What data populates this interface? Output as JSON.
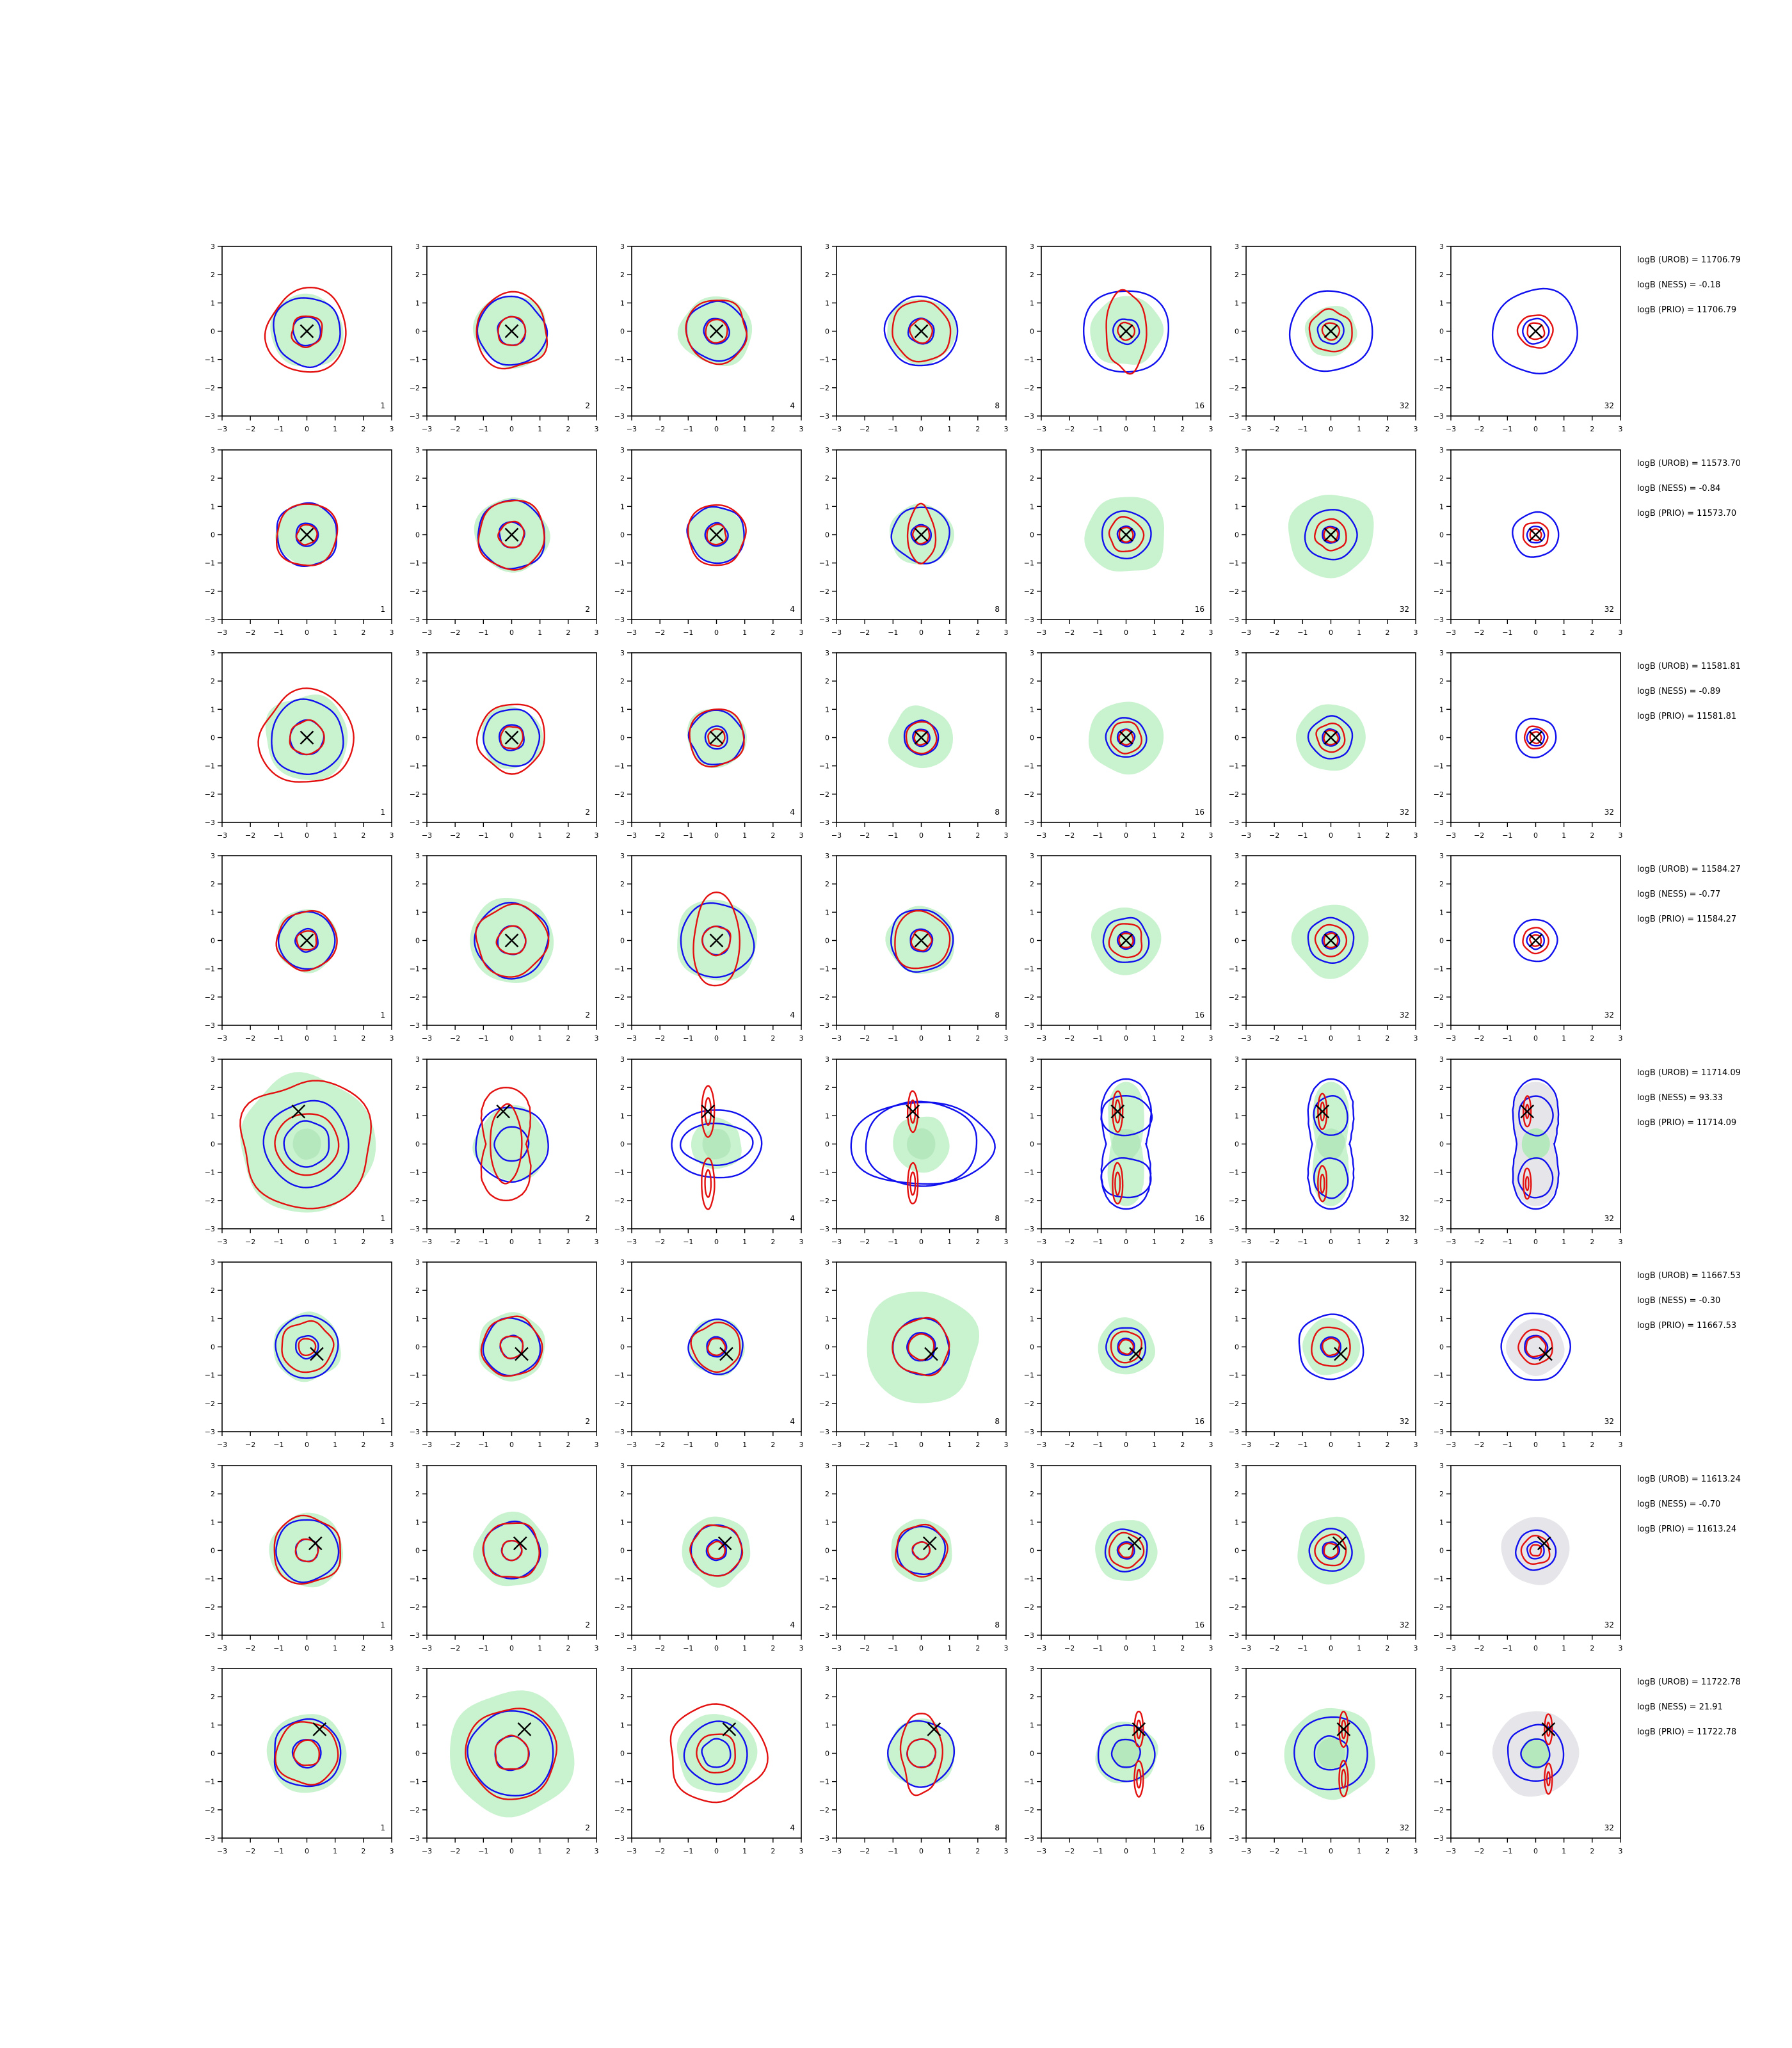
{
  "chart_data": {
    "type": "contour-grid",
    "xlim": [
      -3,
      3
    ],
    "ylim": [
      -3,
      3
    ],
    "ticks": [
      -3,
      -2,
      -1,
      0,
      1,
      2,
      3
    ],
    "grid": false,
    "colors": {
      "fill": "#c9f2cf",
      "fill_last": "#e6e6ea",
      "blue": "#1010ee",
      "red": "#e31010",
      "marker": "#000000"
    },
    "column_labels": [
      "1",
      "2",
      "4",
      "8",
      "16",
      "32",
      "32"
    ],
    "stat_labels": [
      "logB (UROB)",
      "logB (NESS)",
      "logB (PRIO)"
    ],
    "rows": [
      {
        "marker": [
          0.0,
          0.0
        ],
        "stats": [
          "11706.79",
          "-0.18",
          "11706.79"
        ],
        "panels": [
          {
            "fill": 1.3,
            "blue": [
              0.5,
              1.2
            ],
            "red": [
              0.55,
              1.45
            ]
          },
          {
            "fill": 1.3,
            "blue": [
              0.5,
              1.2
            ],
            "red": [
              0.5,
              1.3
            ]
          },
          {
            "fill": 1.25,
            "blue": [
              0.45,
              1.05
            ],
            "red": [
              0.4,
              1.1
            ]
          },
          {
            "fill": 1.2,
            "blue": [
              0.45,
              1.25
            ],
            "red": [
              0.4,
              1.05
            ]
          },
          {
            "fill": 1.25,
            "blue": [
              0.45,
              1.5
            ],
            "red": [
              0.3,
              1.3
            ],
            "red_shape": "elongated"
          },
          {
            "fill": 0.9,
            "blue": [
              0.45,
              1.45
            ],
            "red": [
              0.3,
              0.75
            ]
          },
          {
            "fill": 0,
            "blue": [
              0.45,
              1.5
            ],
            "red": [
              0.3,
              0.6
            ]
          }
        ]
      },
      {
        "marker": [
          0.0,
          0.0
        ],
        "stats": [
          "11573.70",
          "-0.84",
          "11573.70"
        ],
        "panels": [
          {
            "fill": 1.1,
            "blue": [
              0.4,
              1.1
            ],
            "red": [
              0.35,
              1.1
            ]
          },
          {
            "fill": 1.3,
            "blue": [
              0.45,
              1.2
            ],
            "red": [
              0.45,
              1.2
            ]
          },
          {
            "fill": 1.0,
            "blue": [
              0.4,
              1.0
            ],
            "red": [
              0.35,
              1.05
            ]
          },
          {
            "fill": 1.1,
            "blue": [
              0.35,
              1.0
            ],
            "red": [
              0.3,
              0.9
            ],
            "red_shape": "elongated"
          },
          {
            "fill": 1.4,
            "blue": [
              0.3,
              0.85
            ],
            "red": [
              0.25,
              0.6
            ]
          },
          {
            "fill": 1.5,
            "blue": [
              0.3,
              0.9
            ],
            "red": [
              0.25,
              0.55
            ]
          },
          {
            "fill": 0,
            "blue": [
              0.3,
              0.8
            ],
            "red": [
              0.2,
              0.45
            ]
          }
        ]
      },
      {
        "marker": [
          0.0,
          0.0
        ],
        "stats": [
          "11581.81",
          "-0.89",
          "11581.81"
        ],
        "panels": [
          {
            "fill": 1.5,
            "blue": [
              0.6,
              1.3
            ],
            "red": [
              0.6,
              1.65
            ]
          },
          {
            "fill": 1.1,
            "blue": [
              0.45,
              1.0
            ],
            "red": [
              0.4,
              1.2
            ]
          },
          {
            "fill": 1.05,
            "blue": [
              0.4,
              0.95
            ],
            "red": [
              0.3,
              1.0
            ]
          },
          {
            "fill": 1.1,
            "blue": [
              0.3,
              0.6
            ],
            "red": [
              0.25,
              0.55
            ]
          },
          {
            "fill": 1.3,
            "blue": [
              0.3,
              0.7
            ],
            "red": [
              0.25,
              0.55
            ]
          },
          {
            "fill": 1.2,
            "blue": [
              0.3,
              0.75
            ],
            "red": [
              0.25,
              0.5
            ]
          },
          {
            "fill": 0,
            "blue": [
              0.3,
              0.7
            ],
            "red": [
              0.2,
              0.4
            ]
          }
        ]
      },
      {
        "marker": [
          0.0,
          0.0
        ],
        "stats": [
          "11584.27",
          "-0.77",
          "11584.27"
        ],
        "panels": [
          {
            "fill": 1.1,
            "blue": [
              0.4,
              1.0
            ],
            "red": [
              0.35,
              1.05
            ]
          },
          {
            "fill": 1.5,
            "blue": [
              0.5,
              1.3
            ],
            "red": [
              0.5,
              1.25
            ]
          },
          {
            "fill": 1.45,
            "blue": [
              0.5,
              1.3
            ],
            "red": [
              0.5,
              1.5
            ],
            "red_shape": "elongated"
          },
          {
            "fill": 1.2,
            "blue": [
              0.4,
              1.1
            ],
            "red": [
              0.35,
              1.0
            ]
          },
          {
            "fill": 1.2,
            "blue": [
              0.3,
              0.8
            ],
            "red": [
              0.25,
              0.6
            ]
          },
          {
            "fill": 1.3,
            "blue": [
              0.3,
              0.8
            ],
            "red": [
              0.25,
              0.55
            ]
          },
          {
            "fill": 0,
            "blue": [
              0.3,
              0.75
            ],
            "red": [
              0.2,
              0.45
            ]
          }
        ]
      },
      {
        "marker": [
          -0.3,
          1.15
        ],
        "stats": [
          "11714.09",
          "93.33",
          "11714.09"
        ],
        "panels": [
          {
            "fill": 2.4,
            "blue": [
              0.8,
              1.5
            ],
            "red": [
              1.1,
              2.3
            ],
            "variant": "broad"
          },
          {
            "fill": 1.3,
            "blue": [
              0.6,
              1.3
            ],
            "red": [
              1.3,
              2.2
            ],
            "variant": "pinched"
          },
          {
            "fill": 0.9,
            "blue": [
              0.8,
              1.6
            ],
            "red": [
              0.3,
              0.5
            ],
            "variant": "bimodal"
          },
          {
            "fill": 1.0,
            "blue": [
              1.6,
              2.0
            ],
            "red": [
              0.25,
              0.4
            ],
            "variant": "bimodal"
          },
          {
            "fill": 1.2,
            "blue": [
              0.9,
              1.3
            ],
            "red": [
              0.25,
              0.4
            ],
            "variant": "peanut"
          },
          {
            "fill": 1.2,
            "blue": [
              0.6,
              1.2
            ],
            "red": [
              0.2,
              0.35
            ],
            "variant": "peanut"
          },
          {
            "fill": 1.5,
            "blue": [
              0.6,
              1.2
            ],
            "red": [
              0.15,
              0.3
            ],
            "variant": "peanut"
          }
        ]
      },
      {
        "marker": [
          0.35,
          -0.25
        ],
        "stats": [
          "11667.53",
          "-0.30",
          "11667.53"
        ],
        "panels": [
          {
            "fill": 1.2,
            "blue": [
              0.4,
              1.1
            ],
            "red": [
              0.3,
              0.9
            ]
          },
          {
            "fill": 1.2,
            "blue": [
              0.4,
              1.0
            ],
            "red": [
              0.4,
              1.05
            ]
          },
          {
            "fill": 1.0,
            "blue": [
              0.35,
              0.95
            ],
            "red": [
              0.3,
              0.85
            ]
          },
          {
            "fill": 2.0,
            "blue": [
              0.5,
              1.0
            ],
            "red": [
              0.45,
              1.0
            ]
          },
          {
            "fill": 1.0,
            "blue": [
              0.3,
              0.7
            ],
            "red": [
              0.25,
              0.55
            ]
          },
          {
            "fill": 1.0,
            "blue": [
              0.35,
              1.15
            ],
            "red": [
              0.3,
              0.7
            ]
          },
          {
            "fill": 1.0,
            "blue": [
              0.4,
              1.2
            ],
            "red": [
              0.35,
              0.6
            ]
          }
        ]
      },
      {
        "marker": [
          0.3,
          0.25
        ],
        "stats": [
          "11613.24",
          "-0.70",
          "11613.24"
        ],
        "panels": [
          {
            "fill": 1.3,
            "blue": [
              0.4,
              1.1
            ],
            "red": [
              0.4,
              1.2
            ]
          },
          {
            "fill": 1.3,
            "blue": [
              0.35,
              1.0
            ],
            "red": [
              0.35,
              1.0
            ]
          },
          {
            "fill": 1.2,
            "blue": [
              0.35,
              0.9
            ],
            "red": [
              0.3,
              0.9
            ]
          },
          {
            "fill": 1.1,
            "blue": [
              0.3,
              0.85
            ],
            "red": [
              0.3,
              0.9
            ]
          },
          {
            "fill": 1.1,
            "blue": [
              0.3,
              0.75
            ],
            "red": [
              0.25,
              0.6
            ]
          },
          {
            "fill": 1.2,
            "blue": [
              0.3,
              0.75
            ],
            "red": [
              0.25,
              0.55
            ]
          },
          {
            "fill": 1.2,
            "blue": [
              0.3,
              0.7
            ],
            "red": [
              0.2,
              0.5
            ]
          }
        ]
      },
      {
        "marker": [
          0.45,
          0.85
        ],
        "stats": [
          "11722.78",
          "21.91",
          "11722.78"
        ],
        "panels": [
          {
            "fill": 1.4,
            "blue": [
              0.5,
              1.2
            ],
            "red": [
              0.45,
              1.1
            ]
          },
          {
            "fill": 2.2,
            "blue": [
              0.6,
              1.5
            ],
            "red": [
              0.6,
              1.6
            ]
          },
          {
            "fill": 1.4,
            "blue": [
              0.5,
              1.1
            ],
            "red": [
              0.7,
              1.7
            ]
          },
          {
            "fill": 1.2,
            "blue": [
              0.5,
              1.15
            ],
            "red": [
              0.5,
              1.3
            ],
            "red_shape": "elongated"
          },
          {
            "fill": 1.1,
            "blue": [
              0.5,
              1.0
            ],
            "red": [
              0.2,
              0.35
            ],
            "variant": "split-red"
          },
          {
            "fill": 1.6,
            "blue": [
              0.6,
              1.3
            ],
            "red": [
              0.2,
              0.35
            ],
            "variant": "split-red"
          },
          {
            "fill": 1.5,
            "blue": [
              0.5,
              1.0
            ],
            "red": [
              0.15,
              0.3
            ],
            "variant": "split-red"
          }
        ]
      }
    ]
  }
}
